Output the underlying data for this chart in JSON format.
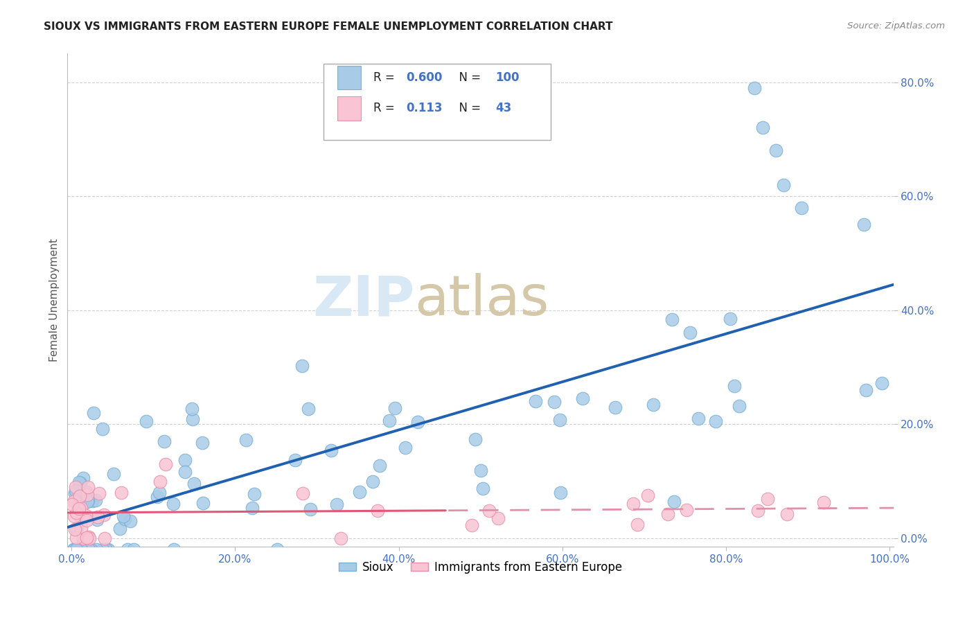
{
  "title": "SIOUX VS IMMIGRANTS FROM EASTERN EUROPE FEMALE UNEMPLOYMENT CORRELATION CHART",
  "source": "Source: ZipAtlas.com",
  "ylabel": "Female Unemployment",
  "xlim": [
    -0.005,
    1.005
  ],
  "ylim": [
    -0.015,
    0.85
  ],
  "xticks": [
    0.0,
    0.2,
    0.4,
    0.6,
    0.8,
    1.0
  ],
  "yticks": [
    0.0,
    0.2,
    0.4,
    0.6,
    0.8
  ],
  "xtick_labels": [
    "0.0%",
    "20.0%",
    "40.0%",
    "60.0%",
    "80.0%",
    "100.0%"
  ],
  "ytick_labels": [
    "0.0%",
    "20.0%",
    "40.0%",
    "60.0%",
    "80.0%"
  ],
  "series1_color": "#a8cce8",
  "series1_edge": "#7ab0d4",
  "series2_color": "#f9c4d4",
  "series2_edge": "#e890aa",
  "line1_color": "#2060b0",
  "line2_color": "#e05878",
  "line2_dash_color": "#e090a8",
  "r1": 0.6,
  "n1": 100,
  "r2": 0.113,
  "n2": 43,
  "legend_label1": "Sioux",
  "legend_label2": "Immigrants from Eastern Europe",
  "watermark_zip": "ZIP",
  "watermark_atlas": "atlas",
  "background_color": "#ffffff",
  "title_fontsize": 11,
  "tick_color": "#4472c4",
  "tick_fontsize": 11,
  "right_tick_color": "#4472c4",
  "grid_color": "#cccccc",
  "legend_r_color": "#000000",
  "legend_val_color": "#4472c4"
}
